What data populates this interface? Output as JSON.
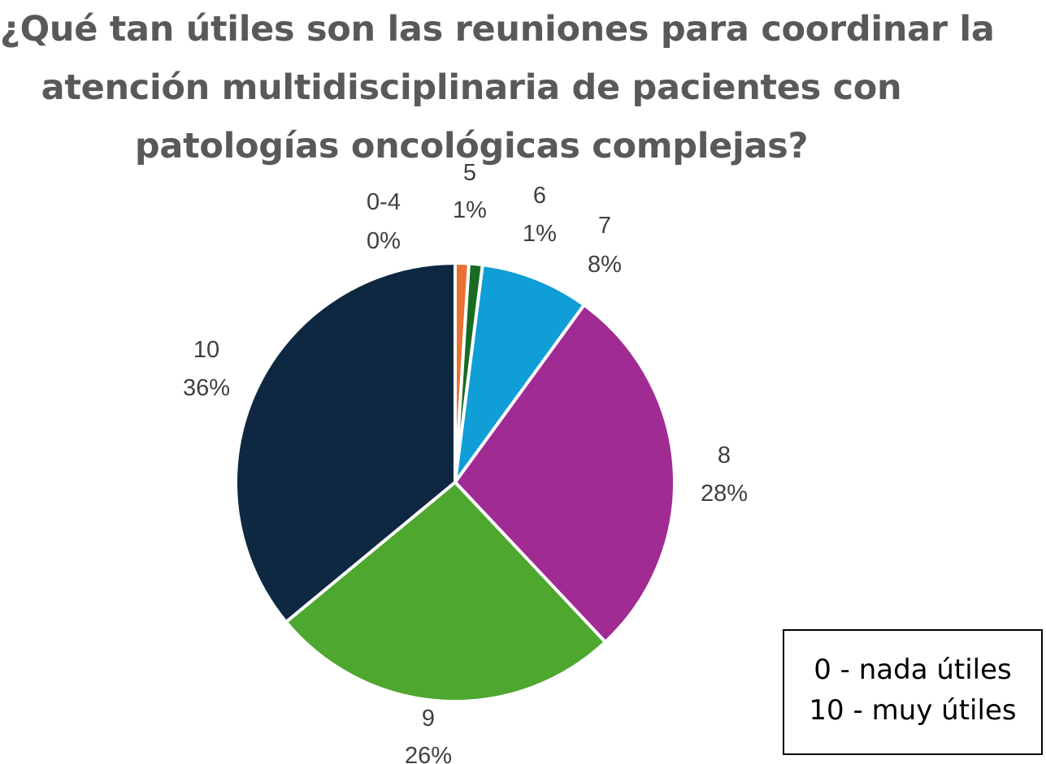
{
  "chart_data": {
    "type": "pie",
    "title_lines": [
      "¿Qué tan útiles son las reuniones para coordinar la",
      "atención multidisciplinaria de pacientes con",
      "patologías oncológicas complejas?"
    ],
    "slices": [
      {
        "label": "0-4",
        "value": 0,
        "percent_label": "0%",
        "color": "#ffffff"
      },
      {
        "label": "5",
        "value": 1,
        "percent_label": "1%",
        "color": "#e97132"
      },
      {
        "label": "6",
        "value": 1,
        "percent_label": "1%",
        "color": "#196b24"
      },
      {
        "label": "7",
        "value": 8,
        "percent_label": "8%",
        "color": "#0f9ed5"
      },
      {
        "label": "8",
        "value": 28,
        "percent_label": "28%",
        "color": "#a02b93"
      },
      {
        "label": "9",
        "value": 26,
        "percent_label": "26%",
        "color": "#4ea72e"
      },
      {
        "label": "10",
        "value": 36,
        "percent_label": "36%",
        "color": "#0e2841"
      }
    ],
    "start": "top",
    "direction": "clockwise"
  },
  "legend_note": {
    "line1": "0 - nada útiles",
    "line2": "10 - muy útiles"
  },
  "colors": {
    "title": "#595959",
    "label": "#404040",
    "separator": "#ffffff"
  }
}
